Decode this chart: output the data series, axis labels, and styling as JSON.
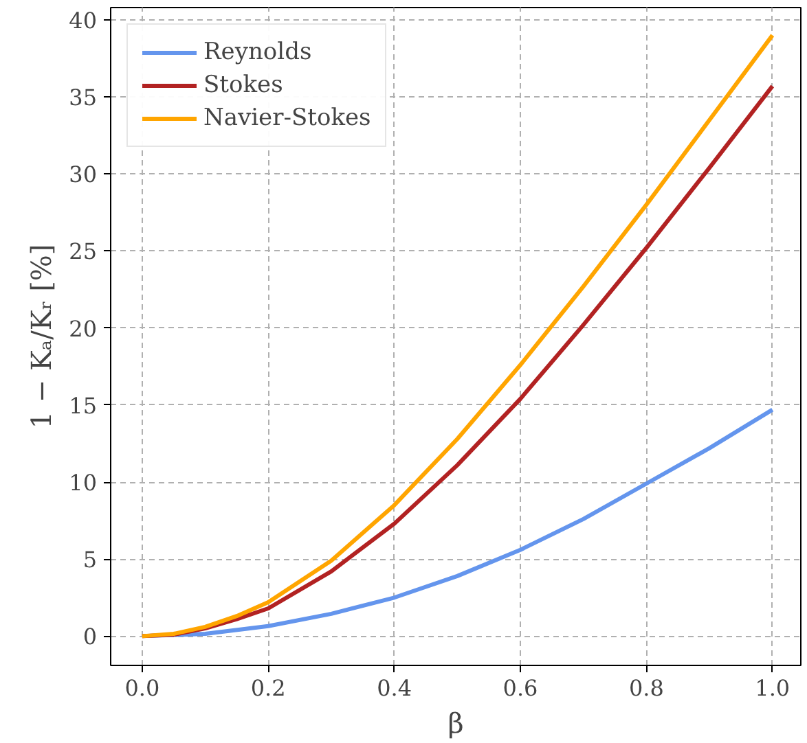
{
  "chart_data": {
    "type": "line",
    "xlabel": "β",
    "ylabel": "1 − Kₐ/Kᵣ [%]",
    "xlim": [
      -0.05,
      1.045
    ],
    "ylim": [
      -1.9,
      40.8
    ],
    "xticks": [
      {
        "value": 0,
        "label": "0.0"
      },
      0.2,
      0.4,
      0.6,
      0.8,
      {
        "value": 1,
        "label": "1.0"
      }
    ],
    "yticks": [
      0,
      5,
      10,
      15,
      20,
      25,
      30,
      35,
      40
    ],
    "grid": true,
    "legend": "top left",
    "line_style": "solid",
    "marker": "none",
    "series": [
      {
        "name": "Reynolds",
        "color": "#6495ed",
        "x": [
          0,
          0.1,
          0.2,
          0.3,
          0.4,
          0.5,
          0.6,
          0.7,
          0.8,
          0.9,
          1.0
        ],
        "values": [
          0,
          0.15,
          0.65,
          1.45,
          2.5,
          3.9,
          5.6,
          7.6,
          9.9,
          12.2,
          14.7
        ]
      },
      {
        "name": "Stokes",
        "color": "#b22222",
        "x": [
          0,
          0.05,
          0.1,
          0.15,
          0.2,
          0.3,
          0.4,
          0.5,
          0.6,
          0.7,
          0.8,
          0.9,
          1.0
        ],
        "values": [
          0,
          0.1,
          0.5,
          1.1,
          1.8,
          4.2,
          7.3,
          11.1,
          15.4,
          20.2,
          25.2,
          30.4,
          35.7
        ]
      },
      {
        "name": "Navier-Stokes",
        "color": "#ffa500",
        "x": [
          0,
          0.05,
          0.1,
          0.15,
          0.2,
          0.3,
          0.4,
          0.5,
          0.6,
          0.7,
          0.8,
          0.9,
          1.0
        ],
        "values": [
          0,
          0.15,
          0.6,
          1.3,
          2.2,
          4.9,
          8.5,
          12.8,
          17.6,
          22.7,
          28.0,
          33.5,
          39.0
        ]
      }
    ]
  }
}
